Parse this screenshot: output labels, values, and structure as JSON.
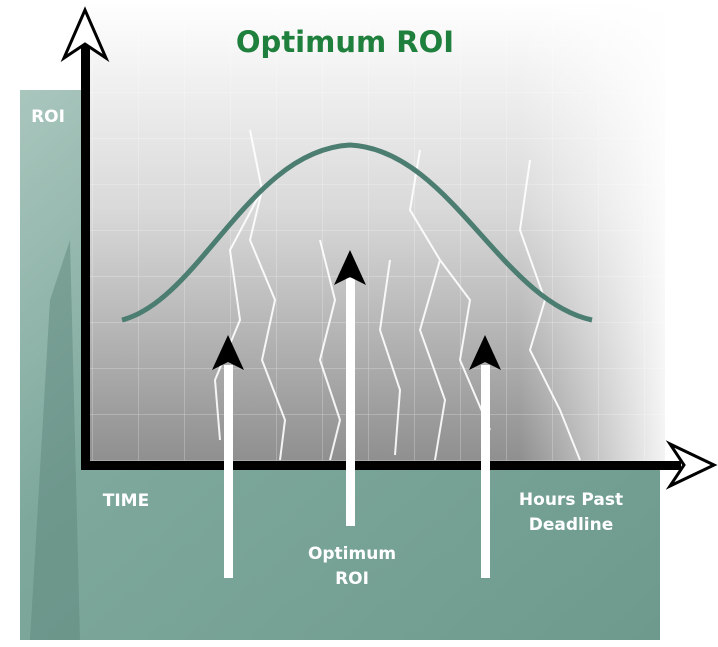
{
  "title": "Optimum ROI",
  "axes": {
    "y_label": "ROI",
    "x_label": "TIME",
    "x_end_label": [
      "Hours Past",
      "Deadline"
    ]
  },
  "marker_label": [
    "Optimum",
    "ROI"
  ]
}
